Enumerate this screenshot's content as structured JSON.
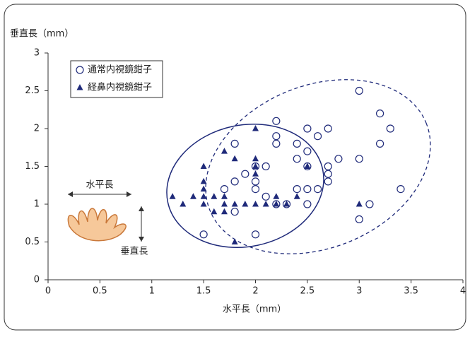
{
  "chart_data": {
    "type": "scatter",
    "y_label": "垂直長（mm）",
    "x_label": "水平長（mm）",
    "annotations": [
      "水平長",
      "垂直長"
    ],
    "xlim": [
      0,
      4
    ],
    "xticks": [
      0,
      0.5,
      1,
      1.5,
      2,
      2.5,
      3,
      3.5,
      4
    ],
    "ylim": [
      0,
      3
    ],
    "yticks": [
      0,
      0.5,
      1,
      1.5,
      2,
      2.5,
      3
    ],
    "grid": false,
    "legend": "upper-left",
    "series": [
      {
        "name": "通常内視鏡鉗子",
        "color": "#1f2a7a",
        "marker": "circle",
        "x": [
          3.0,
          3.2,
          3.3,
          3.2,
          3.0,
          3.4,
          3.1,
          3.0,
          2.2,
          2.2,
          2.2,
          2.5,
          2.6,
          2.7,
          2.4,
          2.5,
          2.4,
          2.5,
          2.7,
          2.8,
          2.7,
          2.7,
          2.6,
          2.5,
          2.4,
          2.5,
          2.3,
          2.2,
          2.1,
          2.1,
          2.0,
          2.0,
          2.0,
          1.9,
          1.8,
          1.8,
          1.7,
          1.8,
          1.5,
          2.0
        ],
        "values": [
          2.5,
          2.2,
          2.0,
          1.8,
          1.6,
          1.2,
          1.0,
          0.8,
          2.1,
          1.9,
          1.8,
          2.0,
          1.9,
          2.0,
          1.8,
          1.7,
          1.6,
          1.5,
          1.5,
          1.6,
          1.4,
          1.3,
          1.2,
          1.2,
          1.2,
          1.0,
          1.0,
          1.0,
          1.1,
          1.5,
          1.5,
          1.3,
          1.2,
          1.4,
          1.8,
          1.3,
          1.2,
          0.9,
          0.6,
          0.6
        ]
      },
      {
        "name": "経鼻内視鏡鉗子",
        "color": "#1f2a7a",
        "marker": "triangle",
        "x": [
          2.0,
          1.7,
          1.5,
          1.5,
          1.5,
          1.5,
          1.5,
          1.4,
          1.3,
          1.2,
          1.6,
          1.6,
          1.7,
          1.7,
          1.8,
          1.8,
          1.7,
          1.9,
          2.0,
          2.0,
          2.0,
          2.0,
          2.1,
          2.2,
          2.3,
          2.2,
          2.5,
          3.0,
          2.4,
          1.8
        ],
        "values": [
          2.0,
          1.7,
          1.5,
          1.3,
          1.2,
          1.1,
          1.0,
          1.1,
          1.0,
          1.1,
          1.1,
          0.9,
          1.0,
          1.1,
          1.0,
          0.5,
          0.9,
          1.0,
          1.0,
          1.5,
          1.4,
          1.6,
          1.0,
          1.0,
          1.0,
          1.1,
          1.5,
          1.0,
          1.1,
          1.6
        ]
      }
    ]
  }
}
